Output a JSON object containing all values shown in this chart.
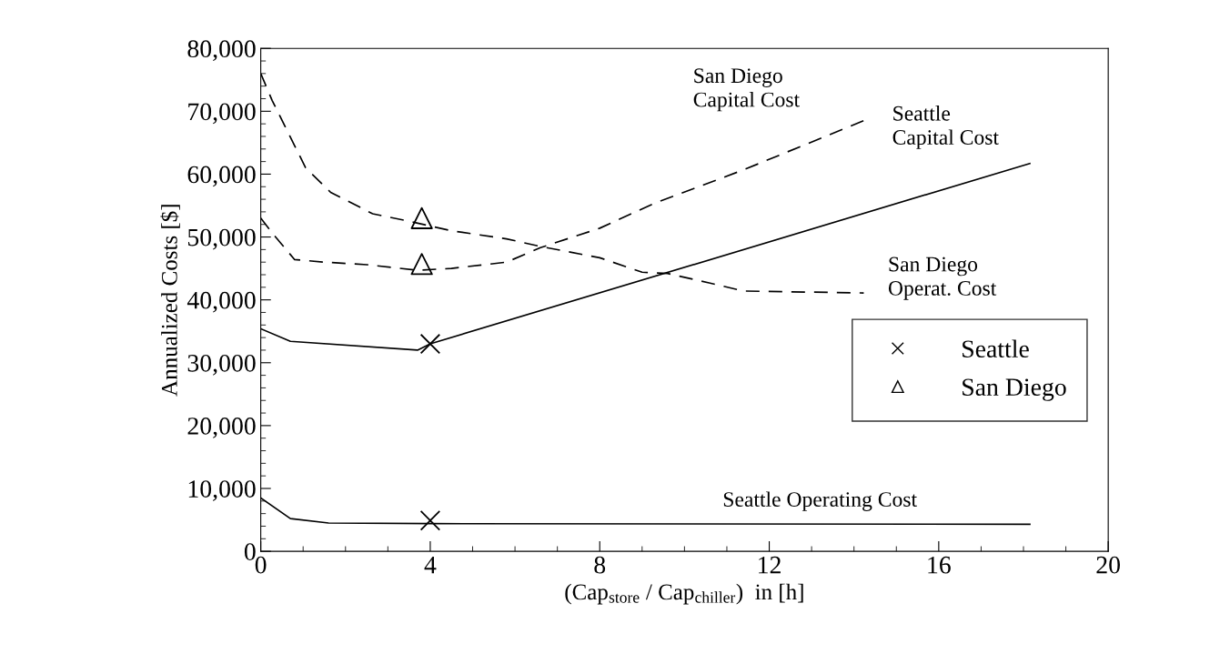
{
  "chart_data": {
    "type": "line",
    "xlabel": "(Cap$_{store}$ / Cap$_{chiller}$)  in [h]",
    "ylabel": "Annualized Costs [$]",
    "xlim": [
      0,
      20
    ],
    "ylim": [
      0,
      80000
    ],
    "xticks": [
      0,
      {
        "value": 1,
        "label": null
      },
      {
        "value": 2,
        "label": null
      },
      {
        "value": 3,
        "label": null
      },
      4,
      {
        "value": 5,
        "label": null
      },
      {
        "value": 6,
        "label": null
      },
      {
        "value": 7,
        "label": null
      },
      8,
      {
        "value": 9,
        "label": null
      },
      {
        "value": 10,
        "label": null
      },
      {
        "value": 11,
        "label": null
      },
      12,
      {
        "value": 13,
        "label": null
      },
      {
        "value": 14,
        "label": null
      },
      {
        "value": 15,
        "label": null
      },
      16,
      {
        "value": 17,
        "label": null
      },
      {
        "value": 18,
        "label": null
      },
      {
        "value": 19,
        "label": null
      },
      20
    ],
    "yticks": [
      0,
      {
        "value": 2000,
        "label": null
      },
      {
        "value": 4000,
        "label": null
      },
      {
        "value": 6000,
        "label": null
      },
      {
        "value": 8000,
        "label": null
      },
      {
        "value": 10000,
        "label": "10,000"
      },
      {
        "value": 12000,
        "label": null
      },
      {
        "value": 14000,
        "label": null
      },
      {
        "value": 16000,
        "label": null
      },
      {
        "value": 18000,
        "label": null
      },
      {
        "value": 20000,
        "label": "20,000"
      },
      {
        "value": 22000,
        "label": null
      },
      {
        "value": 24000,
        "label": null
      },
      {
        "value": 26000,
        "label": null
      },
      {
        "value": 28000,
        "label": null
      },
      {
        "value": 30000,
        "label": "30,000"
      },
      {
        "value": 32000,
        "label": null
      },
      {
        "value": 34000,
        "label": null
      },
      {
        "value": 36000,
        "label": null
      },
      {
        "value": 38000,
        "label": null
      },
      {
        "value": 40000,
        "label": "40,000"
      },
      {
        "value": 42000,
        "label": null
      },
      {
        "value": 44000,
        "label": null
      },
      {
        "value": 46000,
        "label": null
      },
      {
        "value": 48000,
        "label": null
      },
      {
        "value": 50000,
        "label": "50,000"
      },
      {
        "value": 52000,
        "label": null
      },
      {
        "value": 54000,
        "label": null
      },
      {
        "value": 56000,
        "label": null
      },
      {
        "value": 58000,
        "label": null
      },
      {
        "value": 60000,
        "label": "60,000"
      },
      {
        "value": 62000,
        "label": null
      },
      {
        "value": 64000,
        "label": null
      },
      {
        "value": 66000,
        "label": null
      },
      {
        "value": 68000,
        "label": null
      },
      {
        "value": 70000,
        "label": "70,000"
      },
      {
        "value": 72000,
        "label": null
      },
      {
        "value": 74000,
        "label": null
      },
      {
        "value": 76000,
        "label": null
      },
      {
        "value": 78000,
        "label": null
      },
      {
        "value": 80000,
        "label": "80,000"
      }
    ],
    "grid": false,
    "legend": "right",
    "series": [
      {
        "color": "#000000",
        "line_style": "solid",
        "x": [
          0,
          0.7,
          3.7,
          4,
          18.15
        ],
        "values": [
          35400,
          33400,
          32000,
          33000,
          61700
        ]
      },
      {
        "color": "#000000",
        "line_style": "solid",
        "x": [
          0,
          0.7,
          1.6,
          4,
          18.15
        ],
        "values": [
          8500,
          5200,
          4500,
          4400,
          4300
        ]
      },
      {
        "color": "#000000",
        "line_style": "dashed",
        "x": [
          0,
          0.27,
          1.06,
          1.65,
          2.64,
          3.5,
          4.5,
          5.8,
          6.6,
          8,
          9,
          9.6,
          10.58,
          11.4,
          14.23
        ],
        "values": [
          76000,
          71700,
          61000,
          57100,
          53700,
          52500,
          51000,
          49700,
          48500,
          46700,
          44400,
          44200,
          42700,
          41400,
          41100
        ]
      },
      {
        "color": "#000000",
        "line_style": "dashed",
        "x": [
          0,
          0.3,
          0.8,
          1.5,
          2.5,
          3.7,
          4.5,
          5.8,
          6.6,
          8,
          9.27,
          11.4,
          14.23
        ],
        "values": [
          53000,
          50400,
          46400,
          46000,
          45600,
          44700,
          45000,
          46000,
          48300,
          51400,
          55300,
          60700,
          68500
        ]
      },
      {
        "type": "scatter",
        "name": "Seattle",
        "color": "#000000",
        "marker": "cross",
        "x": [
          4,
          4
        ],
        "values": [
          33000,
          4900
        ]
      },
      {
        "type": "scatter",
        "name": "San Diego",
        "color": "#000000",
        "marker": "triangle",
        "x": [
          3.8,
          3.8
        ],
        "values": [
          53000,
          45700
        ]
      }
    ],
    "annotations": [
      "San Diego\nCapital Cost",
      "Seattle\nCapital Cost",
      "San Diego\nOperat. Cost",
      "Seattle Operating Cost"
    ]
  }
}
